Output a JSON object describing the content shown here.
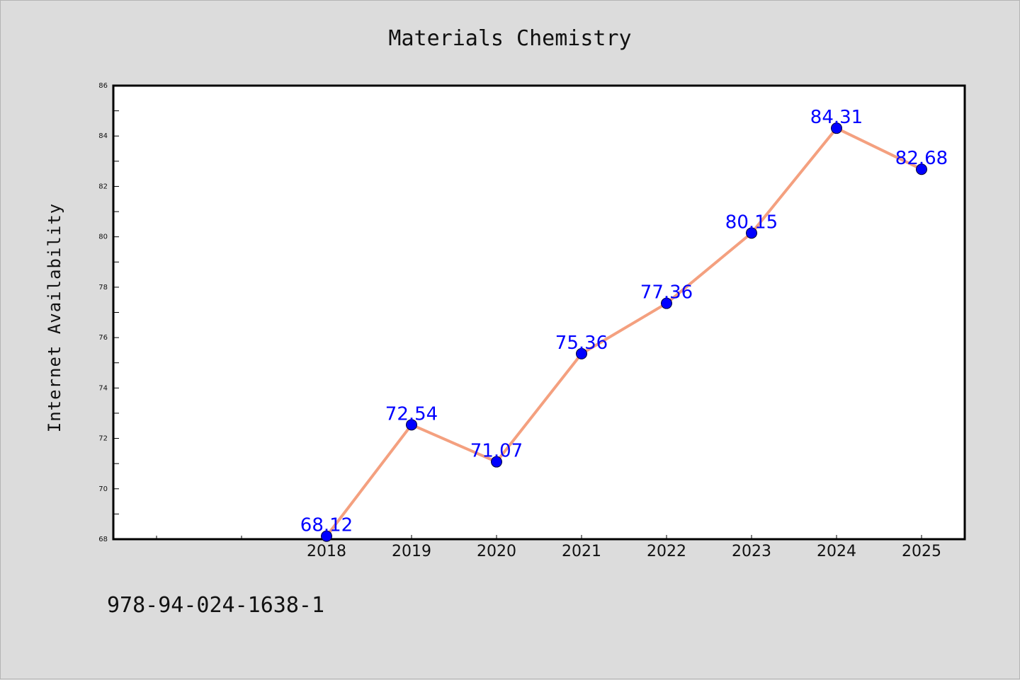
{
  "chart_data": {
    "type": "line",
    "title": "Materials Chemistry",
    "xlabel": "",
    "ylabel": "Internet Availability",
    "categories": [
      "2018",
      "2019",
      "2020",
      "2021",
      "2022",
      "2023",
      "2024",
      "2025"
    ],
    "series": [
      {
        "values": [
          68.12,
          72.54,
          71.07,
          75.36,
          77.36,
          80.15,
          84.31,
          82.68
        ]
      }
    ],
    "data_labels": [
      "68.12",
      "72.54",
      "71.07",
      "75.36",
      "77.36",
      "80.15",
      "84.31",
      "82.68"
    ],
    "ylim": [
      68,
      86
    ],
    "yticks": [
      "68",
      "70",
      "72",
      "74",
      "76",
      "78",
      "80",
      "82",
      "84",
      "86"
    ],
    "grid": false,
    "legend": "none",
    "line_color": "#f4a07f",
    "marker_color": "#0000ff",
    "label_color": "#0000ff"
  },
  "footer": {
    "isbn": "978-94-024-1638-1"
  }
}
